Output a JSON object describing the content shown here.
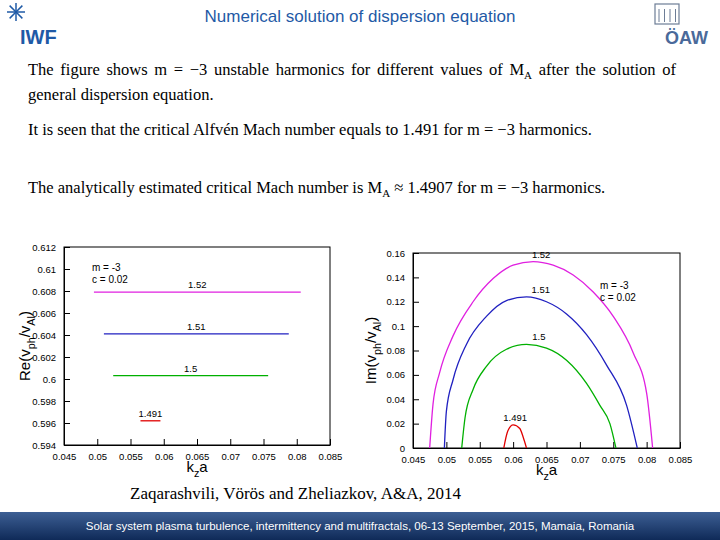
{
  "slide": {
    "title": "Numerical solution of dispersion equation",
    "logo_left": "IWF",
    "logo_right": "ÖAW",
    "paragraphs": [
      [
        {
          "text": "The figure shows m = −3 unstable harmonics for different values of M"
        },
        {
          "text": "A",
          "sub": true
        },
        {
          "text": " after the solution of general dispersion equation."
        }
      ],
      [
        {
          "text": "It is seen that the critical Alfvén Mach number equals to 1.491 for m = −3 harmonics."
        }
      ],
      [
        {
          "text": "The analytically estimated critical Mach number is M"
        },
        {
          "text": "A",
          "sub": true
        },
        {
          "text": " ≈ 1.4907 for m = −3 harmonics."
        }
      ]
    ],
    "citation": "Zaqarashvili, Vörös and Zheliazkov, A&A, 2014",
    "footer": "Solar system plasma turbulence, intermittency and multifractals, 06-13 September, 2015, Mamaia, Romania"
  },
  "chart_data": [
    {
      "type": "line",
      "xlabel": [
        {
          "text": "k"
        },
        {
          "text": "z",
          "sub": true
        },
        {
          "text": "a"
        }
      ],
      "ylabel": [
        {
          "text": "Re(v"
        },
        {
          "text": "ph",
          "sub": true
        },
        {
          "text": "/v"
        },
        {
          "text": "Al",
          "sub": true
        },
        {
          "text": ")"
        }
      ],
      "annotations": [
        "m = -3",
        "c = 0.02"
      ],
      "xlim": [
        0.045,
        0.085
      ],
      "xticks": [
        0.045,
        0.05,
        0.055,
        0.06,
        0.065,
        0.07,
        0.075,
        0.08,
        0.085
      ],
      "ylim": [
        0.594,
        0.612
      ],
      "yticks": [
        0.594,
        0.596,
        0.598,
        0.6,
        0.602,
        0.604,
        0.606,
        0.608,
        0.61,
        0.612
      ],
      "grid": false,
      "series": [
        {
          "name": "1.52",
          "color": "#e020e0",
          "x": [
            0.0495,
            0.065,
            0.0806
          ],
          "values": [
            0.6079,
            0.6079,
            0.6079
          ]
        },
        {
          "name": "1.51",
          "color": "#2020c0",
          "x": [
            0.051,
            0.065,
            0.0788
          ],
          "values": [
            0.6041,
            0.6041,
            0.6041
          ]
        },
        {
          "name": "1.5",
          "color": "#00b000",
          "x": [
            0.0524,
            0.064,
            0.0757
          ],
          "values": [
            0.6003,
            0.6003,
            0.6003
          ]
        },
        {
          "name": "1.491",
          "color": "#e00000",
          "x": [
            0.0565,
            0.058,
            0.0595
          ],
          "values": [
            0.5962,
            0.5962,
            0.5962
          ]
        }
      ]
    },
    {
      "type": "line",
      "xlabel": [
        {
          "text": "k"
        },
        {
          "text": "z",
          "sub": true
        },
        {
          "text": "a"
        }
      ],
      "ylabel": [
        {
          "text": "Im(v"
        },
        {
          "text": "ph",
          "sub": true
        },
        {
          "text": "/v"
        },
        {
          "text": "Al",
          "sub": true
        },
        {
          "text": ")"
        }
      ],
      "annotations": [
        "m = -3",
        "c = 0.02"
      ],
      "xlim": [
        0.045,
        0.085
      ],
      "xticks": [
        0.045,
        0.05,
        0.055,
        0.06,
        0.065,
        0.07,
        0.075,
        0.08,
        0.085
      ],
      "ylim": [
        0,
        0.16
      ],
      "yticks": [
        0,
        0.02,
        0.04,
        0.06,
        0.08,
        0.1,
        0.12,
        0.14,
        0.16
      ],
      "grid": false,
      "series": [
        {
          "name": "1.52",
          "color": "#e020e0",
          "x": [
            0.0475,
            0.048,
            0.049,
            0.051,
            0.054,
            0.057,
            0.06,
            0.063,
            0.066,
            0.069,
            0.072,
            0.075,
            0.078,
            0.08,
            0.0809
          ],
          "values": [
            0,
            0.036,
            0.062,
            0.092,
            0.12,
            0.139,
            0.15,
            0.153,
            0.15,
            0.142,
            0.128,
            0.108,
            0.078,
            0.045,
            0
          ]
        },
        {
          "name": "1.51",
          "color": "#2020c0",
          "x": [
            0.0497,
            0.05,
            0.051,
            0.053,
            0.056,
            0.059,
            0.062,
            0.065,
            0.068,
            0.071,
            0.074,
            0.077,
            0.0786
          ],
          "values": [
            0,
            0.03,
            0.056,
            0.085,
            0.108,
            0.121,
            0.124,
            0.12,
            0.11,
            0.093,
            0.068,
            0.035,
            0
          ]
        },
        {
          "name": "1.5",
          "color": "#00b000",
          "x": [
            0.0523,
            0.0528,
            0.054,
            0.056,
            0.059,
            0.062,
            0.065,
            0.068,
            0.071,
            0.073,
            0.0745,
            0.0754
          ],
          "values": [
            0,
            0.025,
            0.048,
            0.067,
            0.081,
            0.085,
            0.082,
            0.072,
            0.053,
            0.035,
            0.02,
            0
          ]
        },
        {
          "name": "1.491",
          "color": "#e00000",
          "x": [
            0.0586,
            0.0592,
            0.06,
            0.061,
            0.0615,
            0.062
          ],
          "values": [
            0,
            0.014,
            0.019,
            0.016,
            0.009,
            0
          ]
        }
      ]
    }
  ]
}
